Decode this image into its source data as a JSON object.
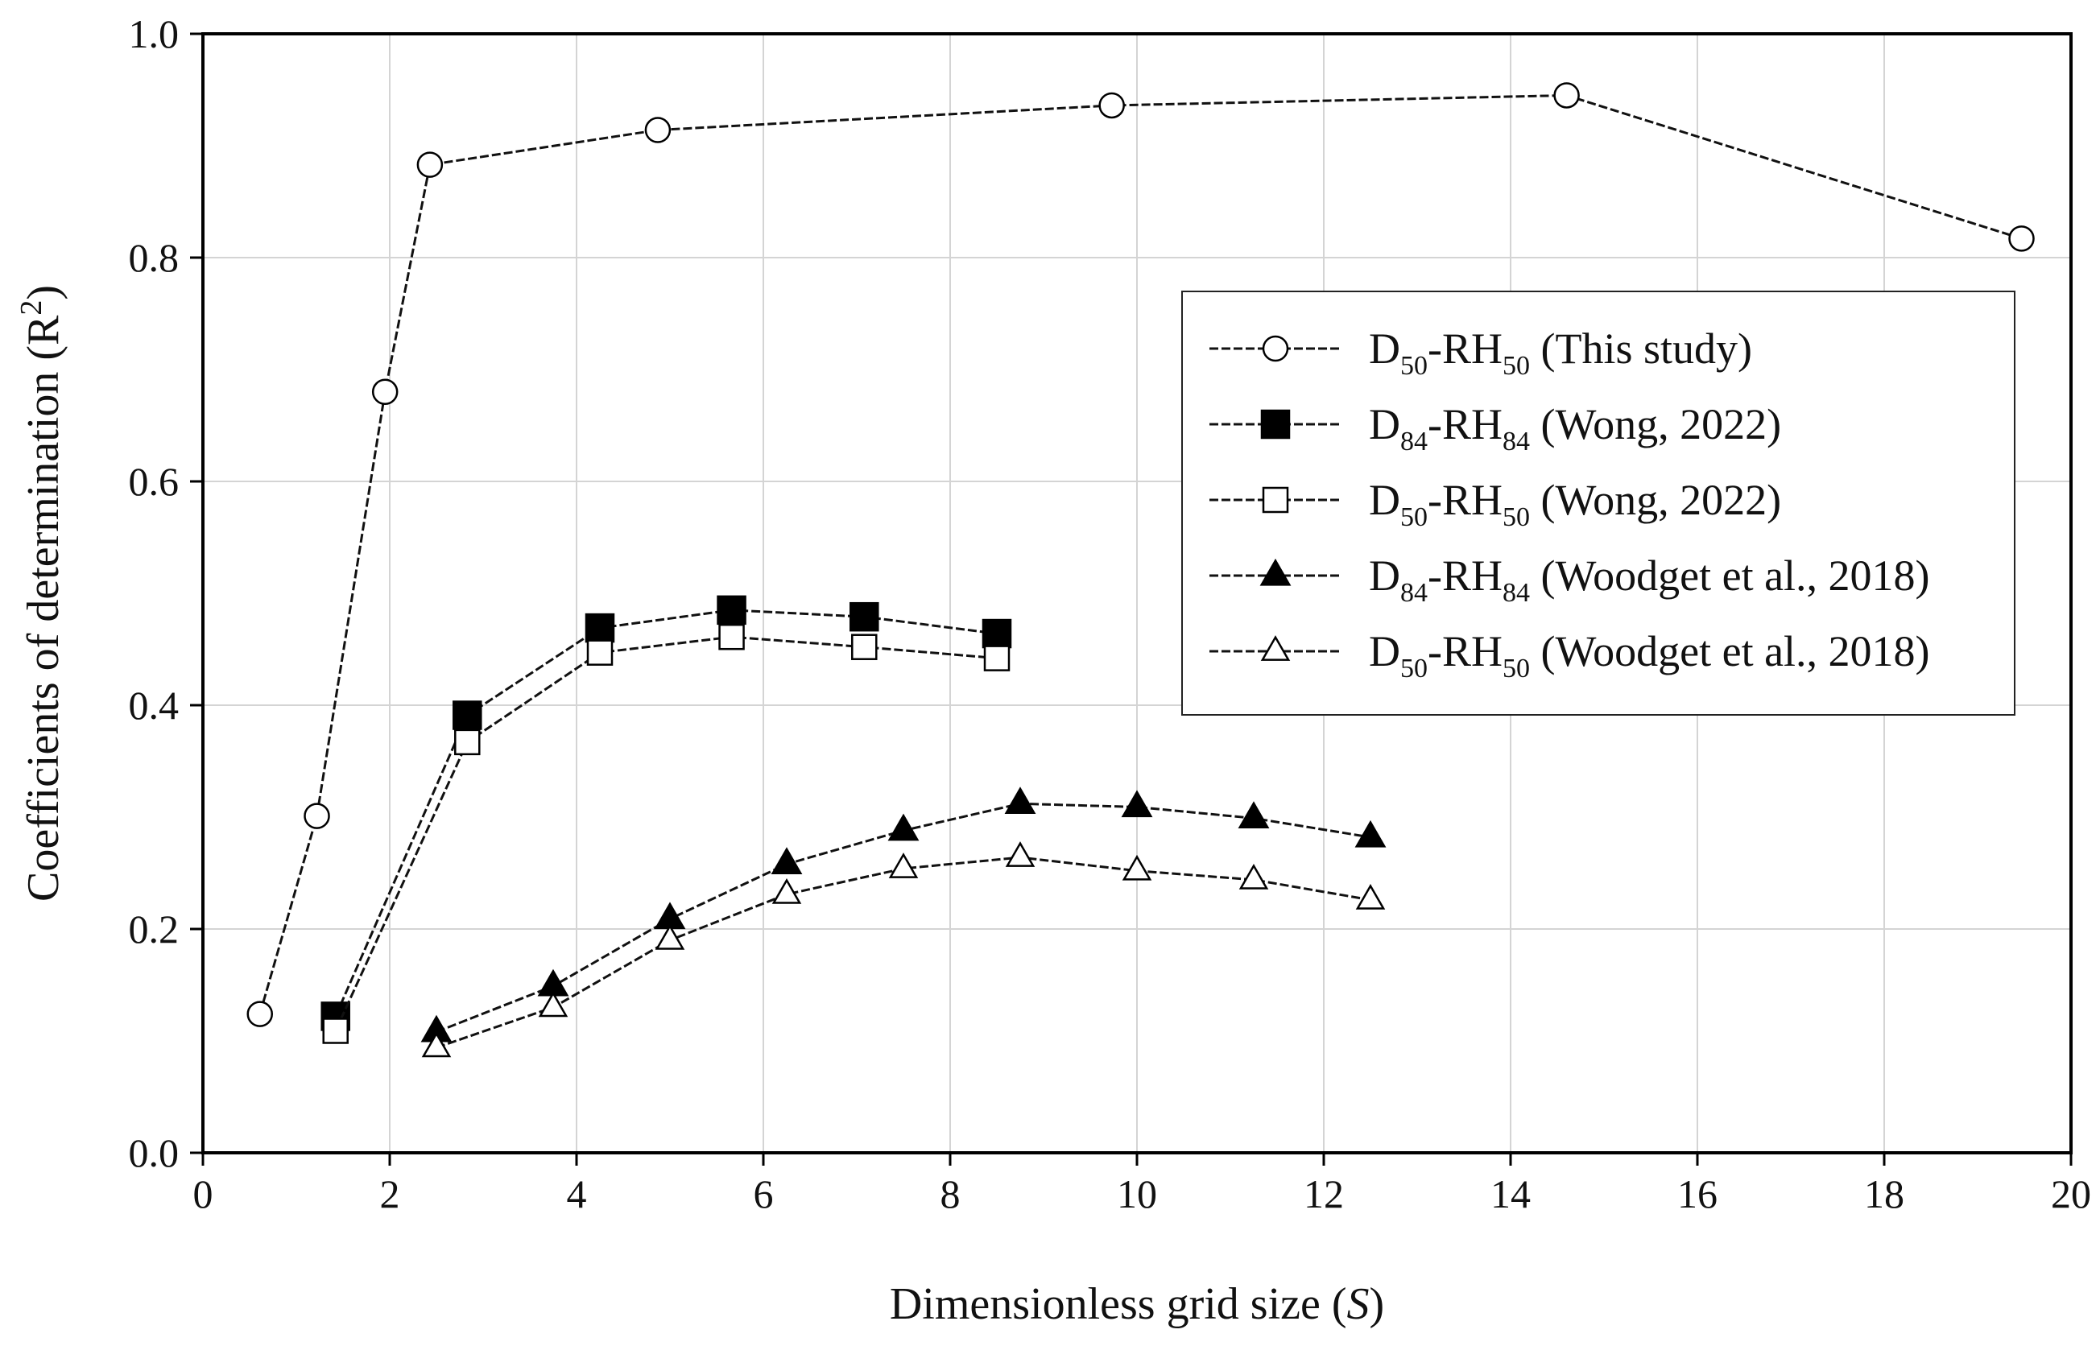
{
  "chart_data": {
    "type": "line",
    "title": "",
    "xlabel": {
      "main": "Dimensionless grid size (",
      "var": "S",
      "close": ")"
    },
    "ylabel": {
      "main": "Coefficients of determination (R",
      "sup": "2",
      "close": ")"
    },
    "xlim": [
      0,
      20
    ],
    "ylim": [
      0,
      1.0
    ],
    "x_ticks": [
      "0",
      "2",
      "4",
      "6",
      "8",
      "10",
      "12",
      "14",
      "16",
      "18",
      "20"
    ],
    "y_ticks": [
      "0.0",
      "0.2",
      "0.4",
      "0.6",
      "0.8",
      "1.0"
    ],
    "grid": true,
    "legend_position": "right",
    "series": [
      {
        "name": "D50-RH50 (This study)",
        "label": {
          "a": "D",
          "a_sub": "50",
          "b": "-RH",
          "b_sub": "50",
          "rest": " (This study)"
        },
        "marker": "circle-open",
        "x": [
          0.61,
          1.22,
          1.95,
          2.43,
          4.87,
          9.73,
          14.6,
          19.47
        ],
        "y": [
          0.124,
          0.301,
          0.68,
          0.883,
          0.914,
          0.936,
          0.945,
          0.817
        ]
      },
      {
        "name": "D84-RH84 (Wong, 2022)",
        "label": {
          "a": "D",
          "a_sub": "84",
          "b": "-RH",
          "b_sub": "84",
          "rest": " (Wong, 2022)"
        },
        "marker": "square-filled",
        "x": [
          1.42,
          2.83,
          4.25,
          5.66,
          7.08,
          8.5
        ],
        "y": [
          0.122,
          0.391,
          0.469,
          0.485,
          0.479,
          0.464
        ]
      },
      {
        "name": "D50-RH50 (Wong, 2022)",
        "label": {
          "a": "D",
          "a_sub": "50",
          "b": "-RH",
          "b_sub": "50",
          "rest": " (Wong, 2022)"
        },
        "marker": "square-open",
        "x": [
          1.42,
          2.83,
          4.25,
          5.66,
          7.08,
          8.5
        ],
        "y": [
          0.109,
          0.367,
          0.447,
          0.461,
          0.452,
          0.442
        ]
      },
      {
        "name": "D84-RH84 (Woodget et al., 2018)",
        "label": {
          "a": "D",
          "a_sub": "84",
          "b": "-RH",
          "b_sub": "84",
          "rest": " (Woodget et al., 2018)"
        },
        "marker": "triangle-filled",
        "x": [
          2.5,
          3.75,
          5.0,
          6.25,
          7.5,
          8.75,
          10.0,
          11.25,
          12.5
        ],
        "y": [
          0.108,
          0.149,
          0.209,
          0.258,
          0.288,
          0.312,
          0.309,
          0.299,
          0.282
        ]
      },
      {
        "name": "D50-RH50 (Woodget et al., 2018)",
        "label": {
          "a": "D",
          "a_sub": "50",
          "b": "-RH",
          "b_sub": "50",
          "rest": " (Woodget et al., 2018)"
        },
        "marker": "triangle-open",
        "x": [
          2.5,
          3.75,
          5.0,
          6.25,
          7.5,
          8.75,
          10.0,
          11.25,
          12.5
        ],
        "y": [
          0.094,
          0.13,
          0.19,
          0.231,
          0.254,
          0.264,
          0.252,
          0.244,
          0.226
        ]
      }
    ]
  }
}
